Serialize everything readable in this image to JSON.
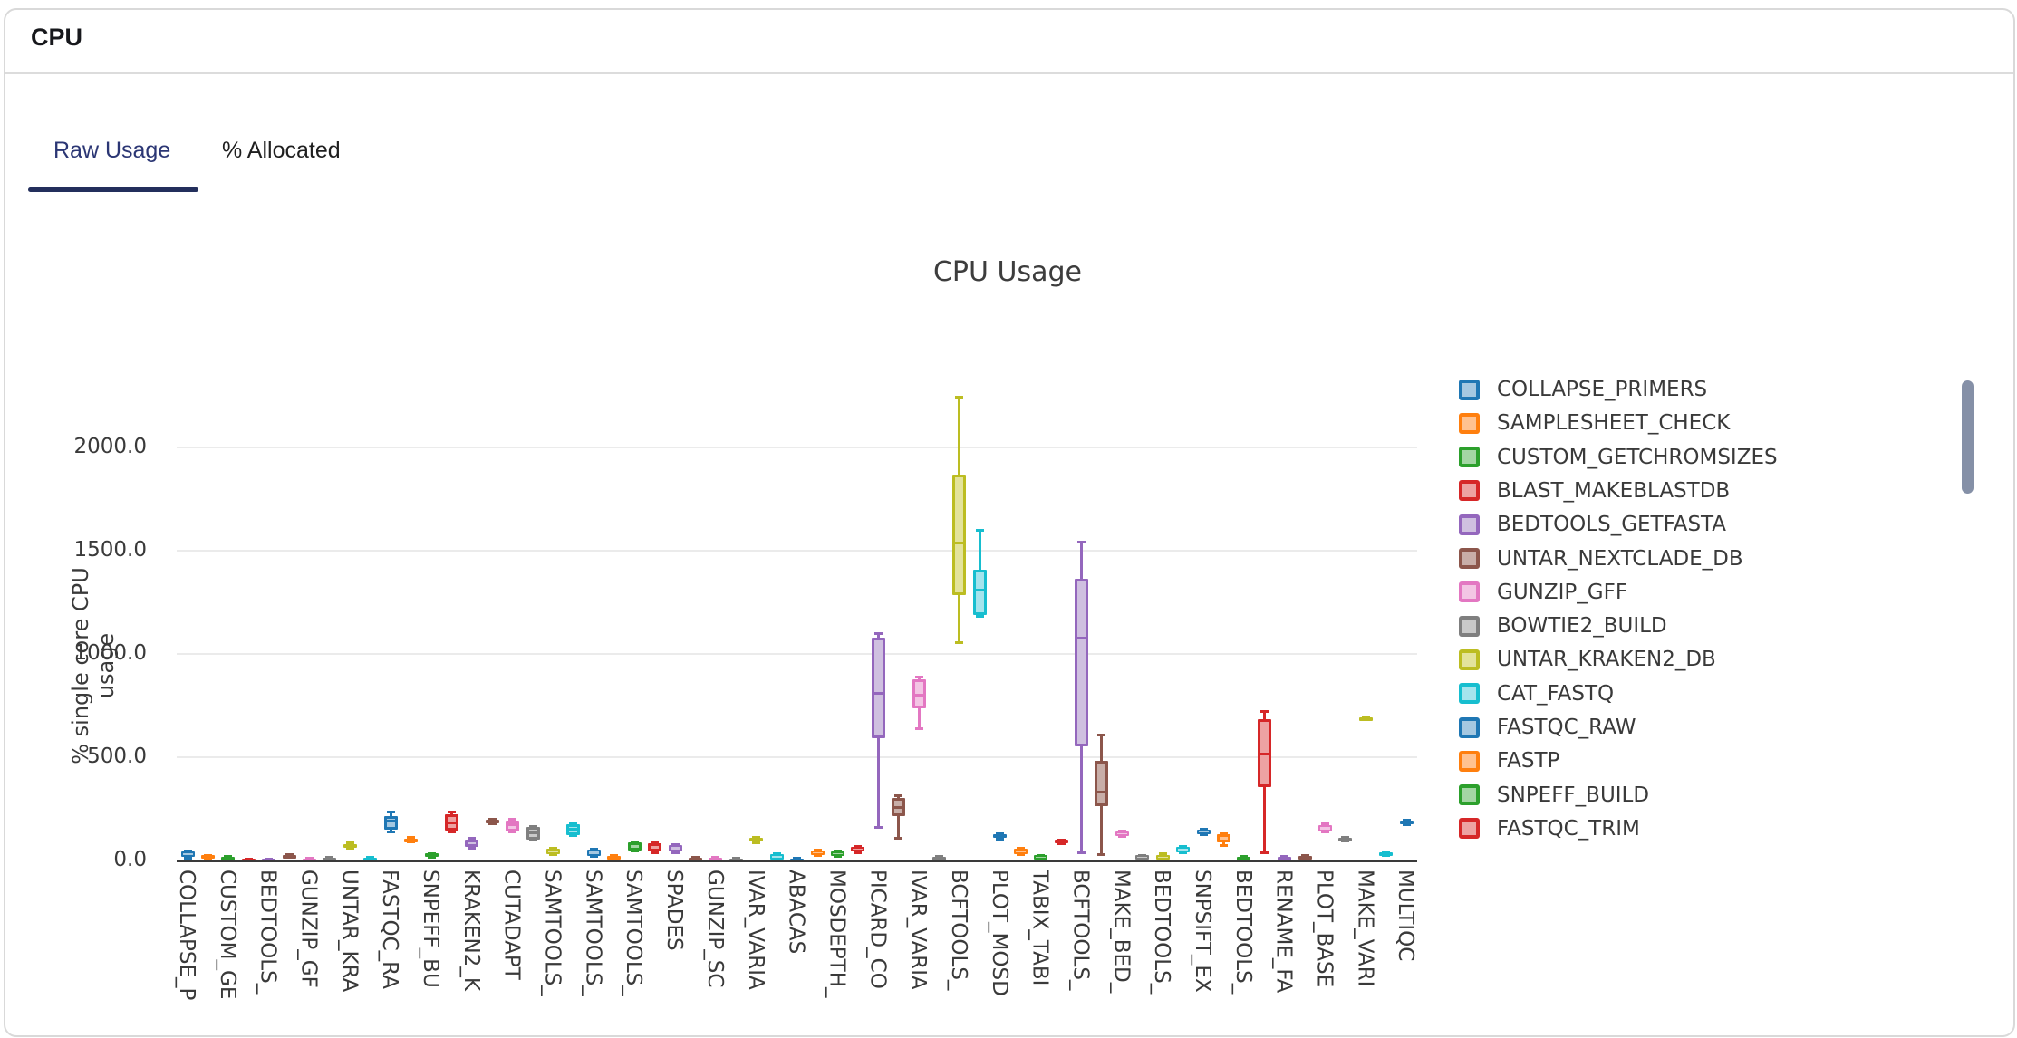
{
  "header": {
    "title": "CPU"
  },
  "tabs": [
    {
      "label": "Raw Usage",
      "active": true
    },
    {
      "label": "% Allocated",
      "active": false
    }
  ],
  "palette": {
    "blue": {
      "edge": "#1f77b4",
      "fill": "#a5c8e1"
    },
    "orange": {
      "edge": "#ff7f0e",
      "fill": "#ffc290"
    },
    "green": {
      "edge": "#2ca02c",
      "fill": "#a3d6a3"
    },
    "red": {
      "edge": "#d62728",
      "fill": "#eda2a2"
    },
    "purple": {
      "edge": "#9467bd",
      "fill": "#cfc0e0"
    },
    "brown": {
      "edge": "#8c564b",
      "fill": "#c8aea8"
    },
    "pink": {
      "edge": "#e377c2",
      "fill": "#f3c5e4"
    },
    "gray": {
      "edge": "#7f7f7f",
      "fill": "#c9c9c9"
    },
    "olive": {
      "edge": "#bcbd22",
      "fill": "#e3e39b"
    },
    "cyan": {
      "edge": "#17becf",
      "fill": "#a5e4ed"
    }
  },
  "chart_data": {
    "type": "boxplot",
    "title": "CPU Usage",
    "ylabel": "% single core CPU usage",
    "ylim": [
      0,
      2320
    ],
    "grid": true,
    "yticks": [
      {
        "value": 0,
        "label": "0.0"
      },
      {
        "value": 500,
        "label": "500.0"
      },
      {
        "value": 1000,
        "label": "1000.0"
      },
      {
        "value": 1500,
        "label": "1500.0"
      },
      {
        "value": 2000,
        "label": "2000.0"
      }
    ],
    "xtick_labels": [
      "COLLAPSE_P",
      "CUSTOM_GE",
      "BEDTOOLS_",
      "GUNZIP_GF",
      "UNTAR_KRA",
      "FASTQC_RA",
      "SNPEFF_BU",
      "KRAKEN2_K",
      "CUTADAPT",
      "SAMTOOLS_",
      "SAMTOOLS_",
      "SAMTOOLS_",
      "SPADES",
      "GUNZIP_SC",
      "IVAR_VARIA",
      "ABACAS",
      "MOSDEPTH_",
      "PICARD_CO",
      "IVAR_VARIA",
      "BCFTOOLS_",
      "PLOT_MOSD",
      "TABIX_TABI",
      "BCFTOOLS_",
      "MAKE_BED_",
      "BEDTOOLS_",
      "SNPSIFT_EX",
      "BEDTOOLS_",
      "RENAME_FA",
      "PLOT_BASE",
      "MAKE_VARI",
      "MULTIQC"
    ],
    "boxes": [
      {
        "color": "blue",
        "v": [
          8,
          14,
          26,
          40,
          44
        ]
      },
      {
        "color": "orange",
        "v": [
          5,
          10,
          15,
          22,
          25
        ]
      },
      {
        "color": "green",
        "v": [
          0,
          2,
          8,
          17,
          20
        ]
      },
      {
        "color": "red",
        "v": [
          0,
          1,
          3,
          5,
          6
        ]
      },
      {
        "color": "purple",
        "v": [
          0,
          1,
          2,
          5,
          6
        ]
      },
      {
        "color": "brown",
        "v": [
          10,
          14,
          20,
          26,
          30
        ]
      },
      {
        "color": "pink",
        "v": [
          0,
          1,
          4,
          8,
          10
        ]
      },
      {
        "color": "gray",
        "v": [
          0,
          2,
          6,
          13,
          15
        ]
      },
      {
        "color": "olive",
        "v": [
          55,
          62,
          70,
          79,
          85
        ]
      },
      {
        "color": "cyan",
        "v": [
          0,
          2,
          6,
          13,
          15
        ]
      },
      {
        "color": "blue",
        "v": [
          136,
          149,
          187,
          215,
          233
        ]
      },
      {
        "color": "orange",
        "v": [
          85,
          90,
          97,
          105,
          110
        ]
      },
      {
        "color": "green",
        "v": [
          10,
          14,
          22,
          31,
          35
        ]
      },
      {
        "color": "red",
        "v": [
          132,
          141,
          180,
          220,
          237
        ]
      },
      {
        "color": "purple",
        "v": [
          55,
          62,
          80,
          100,
          108
        ]
      },
      {
        "color": "brown",
        "v": [
          175,
          180,
          190,
          196,
          200
        ]
      },
      {
        "color": "pink",
        "v": [
          132,
          140,
          170,
          193,
          200
        ]
      },
      {
        "color": "gray",
        "v": [
          95,
          100,
          130,
          160,
          165
        ]
      },
      {
        "color": "olive",
        "v": [
          22,
          28,
          42,
          55,
          60
        ]
      },
      {
        "color": "cyan",
        "v": [
          115,
          120,
          150,
          175,
          180
        ]
      },
      {
        "color": "blue",
        "v": [
          15,
          20,
          35,
          50,
          55
        ]
      },
      {
        "color": "orange",
        "v": [
          0,
          3,
          10,
          20,
          25
        ]
      },
      {
        "color": "green",
        "v": [
          40,
          46,
          65,
          85,
          90
        ]
      },
      {
        "color": "red",
        "v": [
          35,
          42,
          60,
          80,
          88
        ]
      },
      {
        "color": "purple",
        "v": [
          35,
          42,
          55,
          72,
          78
        ]
      },
      {
        "color": "brown",
        "v": [
          0,
          2,
          6,
          12,
          15
        ]
      },
      {
        "color": "pink",
        "v": [
          0,
          2,
          6,
          12,
          15
        ]
      },
      {
        "color": "gray",
        "v": [
          0,
          1,
          4,
          8,
          10
        ]
      },
      {
        "color": "olive",
        "v": [
          82,
          88,
          98,
          108,
          112
        ]
      },
      {
        "color": "cyan",
        "v": [
          0,
          4,
          15,
          28,
          33
        ]
      },
      {
        "color": "blue",
        "v": [
          0,
          2,
          5,
          8,
          10
        ]
      },
      {
        "color": "orange",
        "v": [
          18,
          24,
          35,
          46,
          50
        ]
      },
      {
        "color": "green",
        "v": [
          15,
          20,
          30,
          42,
          48
        ]
      },
      {
        "color": "red",
        "v": [
          35,
          42,
          52,
          64,
          70
        ]
      },
      {
        "color": "purple",
        "v": [
          155,
          590,
          810,
          1077,
          1099
        ]
      },
      {
        "color": "brown",
        "v": [
          105,
          215,
          255,
          300,
          316
        ]
      },
      {
        "color": "pink",
        "v": [
          637,
          734,
          800,
          879,
          888
        ]
      },
      {
        "color": "gray",
        "v": [
          0,
          2,
          7,
          15,
          18
        ]
      },
      {
        "color": "olive",
        "v": [
          1051,
          1284,
          1540,
          1868,
          2250
        ]
      },
      {
        "color": "cyan",
        "v": [
          1180,
          1190,
          1310,
          1410,
          1600
        ]
      },
      {
        "color": "blue",
        "v": [
          100,
          107,
          116,
          125,
          130
        ]
      },
      {
        "color": "orange",
        "v": [
          22,
          30,
          40,
          55,
          61
        ]
      },
      {
        "color": "green",
        "v": [
          0,
          3,
          10,
          22,
          26
        ]
      },
      {
        "color": "red",
        "v": [
          79,
          84,
          90,
          97,
          101
        ]
      },
      {
        "color": "purple",
        "v": [
          31,
          550,
          1075,
          1363,
          1547
        ]
      },
      {
        "color": "brown",
        "v": [
          22,
          260,
          330,
          480,
          607
        ]
      },
      {
        "color": "pink",
        "v": [
          110,
          118,
          128,
          138,
          141
        ]
      },
      {
        "color": "gray",
        "v": [
          0,
          3,
          10,
          22,
          26
        ]
      },
      {
        "color": "olive",
        "v": [
          0,
          4,
          14,
          26,
          31
        ]
      },
      {
        "color": "cyan",
        "v": [
          31,
          38,
          50,
          64,
          70
        ]
      },
      {
        "color": "blue",
        "v": [
          119,
          125,
          135,
          146,
          150
        ]
      },
      {
        "color": "orange",
        "v": [
          66,
          86,
          105,
          125,
          130
        ]
      },
      {
        "color": "green",
        "v": [
          0,
          2,
          8,
          16,
          18
        ]
      },
      {
        "color": "red",
        "v": [
          31,
          352,
          514,
          682,
          721
        ]
      },
      {
        "color": "purple",
        "v": [
          0,
          2,
          8,
          16,
          18
        ]
      },
      {
        "color": "brown",
        "v": [
          0,
          3,
          10,
          18,
          22
        ]
      },
      {
        "color": "pink",
        "v": [
          132,
          140,
          155,
          170,
          176
        ]
      },
      {
        "color": "gray",
        "v": [
          88,
          93,
          100,
          107,
          110
        ]
      },
      {
        "color": "olive",
        "v": [
          677,
          681,
          686,
          691,
          695
        ]
      },
      {
        "color": "cyan",
        "v": [
          18,
          22,
          28,
          36,
          40
        ]
      },
      {
        "color": "blue",
        "v": [
          171,
          176,
          182,
          190,
          194
        ]
      }
    ],
    "legend_position": "right"
  },
  "legend": [
    {
      "label": "COLLAPSE_PRIMERS",
      "color": "blue"
    },
    {
      "label": "SAMPLESHEET_CHECK",
      "color": "orange"
    },
    {
      "label": "CUSTOM_GETCHROMSIZES",
      "color": "green"
    },
    {
      "label": "BLAST_MAKEBLASTDB",
      "color": "red"
    },
    {
      "label": "BEDTOOLS_GETFASTA",
      "color": "purple"
    },
    {
      "label": "UNTAR_NEXTCLADE_DB",
      "color": "brown"
    },
    {
      "label": "GUNZIP_GFF",
      "color": "pink"
    },
    {
      "label": "BOWTIE2_BUILD",
      "color": "gray"
    },
    {
      "label": "UNTAR_KRAKEN2_DB",
      "color": "olive"
    },
    {
      "label": "CAT_FASTQ",
      "color": "cyan"
    },
    {
      "label": "FASTQC_RAW",
      "color": "blue"
    },
    {
      "label": "FASTP",
      "color": "orange"
    },
    {
      "label": "SNPEFF_BUILD",
      "color": "green"
    },
    {
      "label": "FASTQC_TRIM",
      "color": "red"
    }
  ]
}
